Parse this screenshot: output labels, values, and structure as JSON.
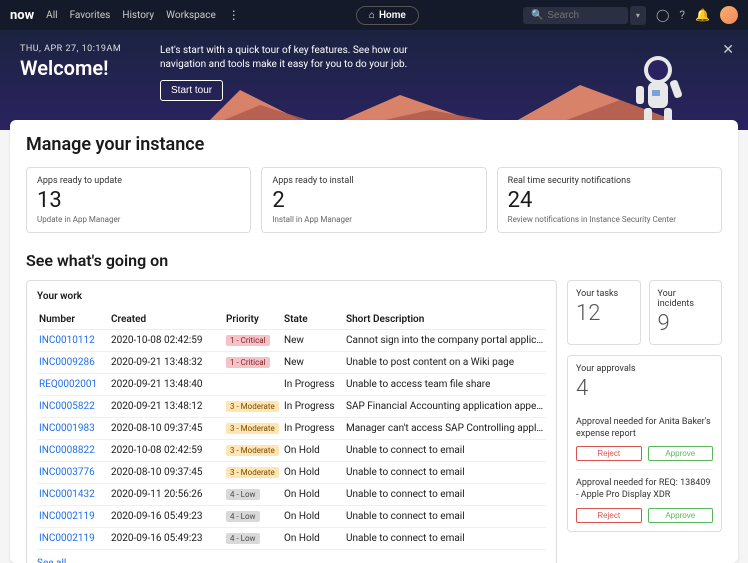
{
  "topbar": {
    "logo": "now",
    "nav": [
      "All",
      "Favorites",
      "History",
      "Workspace"
    ],
    "home": "Home",
    "search_placeholder": "Search"
  },
  "hero": {
    "date": "THU, APR 27, 10:19AM",
    "title": "Welcome!",
    "desc": "Let's start with a quick tour of key features. See how our navigation and tools make it easy for you to do your job.",
    "cta": "Start tour"
  },
  "manage": {
    "title": "Manage your instance",
    "cards": [
      {
        "label": "Apps ready to update",
        "num": "13",
        "sub": "Update in App Manager"
      },
      {
        "label": "Apps ready to install",
        "num": "2",
        "sub": "Install in App Manager"
      },
      {
        "label": "Real time security notifications",
        "num": "24",
        "sub": "Review notifications in Instance Security Center"
      }
    ]
  },
  "going": {
    "title": "See what's going on",
    "work_label": "Your work",
    "columns": [
      "Number",
      "Created",
      "Priority",
      "State",
      "Short Description"
    ],
    "rows": [
      {
        "num": "INC0010112",
        "created": "2020-10-08 02:42:59",
        "pri": "1 - Critical",
        "pri_bg": "#f5c2c7",
        "pri_fg": "#842029",
        "state": "New",
        "desc": "Cannot sign into the company portal application…"
      },
      {
        "num": "INC0009286",
        "created": "2020-09-21 13:48:32",
        "pri": "1 - Critical",
        "pri_bg": "#f5c2c7",
        "pri_fg": "#842029",
        "state": "New",
        "desc": "Unable to post content on a Wiki page"
      },
      {
        "num": "REQ0002001",
        "created": "2020-09-21 13:48:40",
        "pri": "",
        "pri_bg": "",
        "pri_fg": "",
        "state": "In Progress",
        "desc": "Unable to access team file share"
      },
      {
        "num": "INC0005822",
        "created": "2020-09-21 13:48:12",
        "pri": "3 - Moderate",
        "pri_bg": "#ffe5b4",
        "pri_fg": "#7a4d00",
        "state": "In Progress",
        "desc": "SAP Financial Accounting application appears to…"
      },
      {
        "num": "INC0001983",
        "created": "2020-08-10 09:37:45",
        "pri": "3 - Moderate",
        "pri_bg": "#ffe5b4",
        "pri_fg": "#7a4d00",
        "state": "In Progress",
        "desc": "Manager can't access SAP Controlling applicatio…"
      },
      {
        "num": "INC0008822",
        "created": "2020-10-08 02:42:59",
        "pri": "3 - Moderate",
        "pri_bg": "#ffe5b4",
        "pri_fg": "#7a4d00",
        "state": "On Hold",
        "desc": "Unable to connect to email"
      },
      {
        "num": "INC0003776",
        "created": "2020-08-10 09:37:45",
        "pri": "3 - Moderate",
        "pri_bg": "#ffe5b4",
        "pri_fg": "#7a4d00",
        "state": "On Hold",
        "desc": "Unable to connect to email"
      },
      {
        "num": "INC0001432",
        "created": "2020-09-11 20:56:26",
        "pri": "4 - Low",
        "pri_bg": "#d9d9d9",
        "pri_fg": "#4d4d4d",
        "state": "On Hold",
        "desc": "Unable to connect to email"
      },
      {
        "num": "INC0002119",
        "created": "2020-09-16 05:49:23",
        "pri": "4 - Low",
        "pri_bg": "#d9d9d9",
        "pri_fg": "#4d4d4d",
        "state": "On Hold",
        "desc": "Unable to connect to email"
      },
      {
        "num": "INC0002119",
        "created": "2020-09-16 05:49:23",
        "pri": "4 - Low",
        "pri_bg": "#d9d9d9",
        "pri_fg": "#4d4d4d",
        "state": "On Hold",
        "desc": "Unable to connect to email"
      }
    ],
    "see_all": "See all"
  },
  "side": {
    "tasks_label": "Your tasks",
    "tasks_num": "12",
    "incidents_label": "Your incidents",
    "incidents_num": "9",
    "approvals_label": "Your approvals",
    "approvals_num": "4",
    "approvals": [
      {
        "text": "Approval needed for Anita Baker's expense report",
        "reject": "Reject",
        "approve": "Approve"
      },
      {
        "text": "Approval needed for REQ: 138409 - Apple Pro Display XDR",
        "reject": "Reject",
        "approve": "Approve"
      }
    ]
  },
  "colors": {
    "hero_bg_top": "#1b2340",
    "hero_bg_bottom": "#2a2360",
    "link": "#1f6feb",
    "hill1": "#d8826a",
    "hill2": "#b05c4c"
  }
}
